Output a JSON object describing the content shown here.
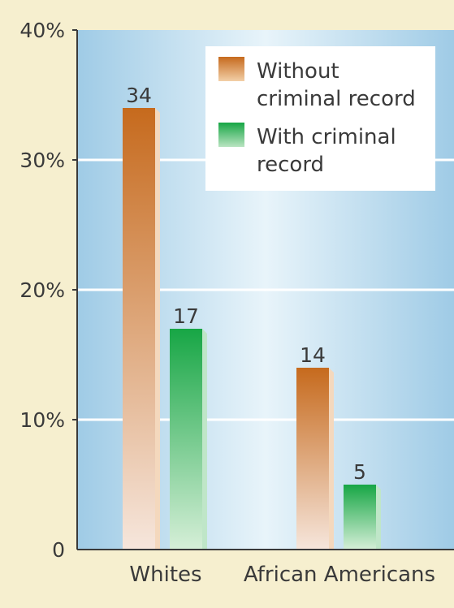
{
  "chart_data": {
    "type": "bar",
    "title": "",
    "xlabel": "",
    "ylabel": "",
    "categories": [
      "Whites",
      "African Americans"
    ],
    "series": [
      {
        "name": "Without criminal record",
        "legend_lines": [
          "Without",
          "criminal record"
        ],
        "values": [
          34,
          14
        ],
        "color": "#c8732a"
      },
      {
        "name": "With criminal record",
        "legend_lines": [
          "With criminal",
          "record"
        ],
        "values": [
          17,
          5
        ],
        "color": "#1aa84b"
      }
    ],
    "ylim": [
      0,
      40
    ],
    "yticks": [
      0,
      10,
      20,
      30,
      40
    ],
    "ytick_labels": [
      "0",
      "10%",
      "20%",
      "30%",
      "40%"
    ],
    "grid": true,
    "legend_position": "top-right",
    "data_labels": true
  }
}
